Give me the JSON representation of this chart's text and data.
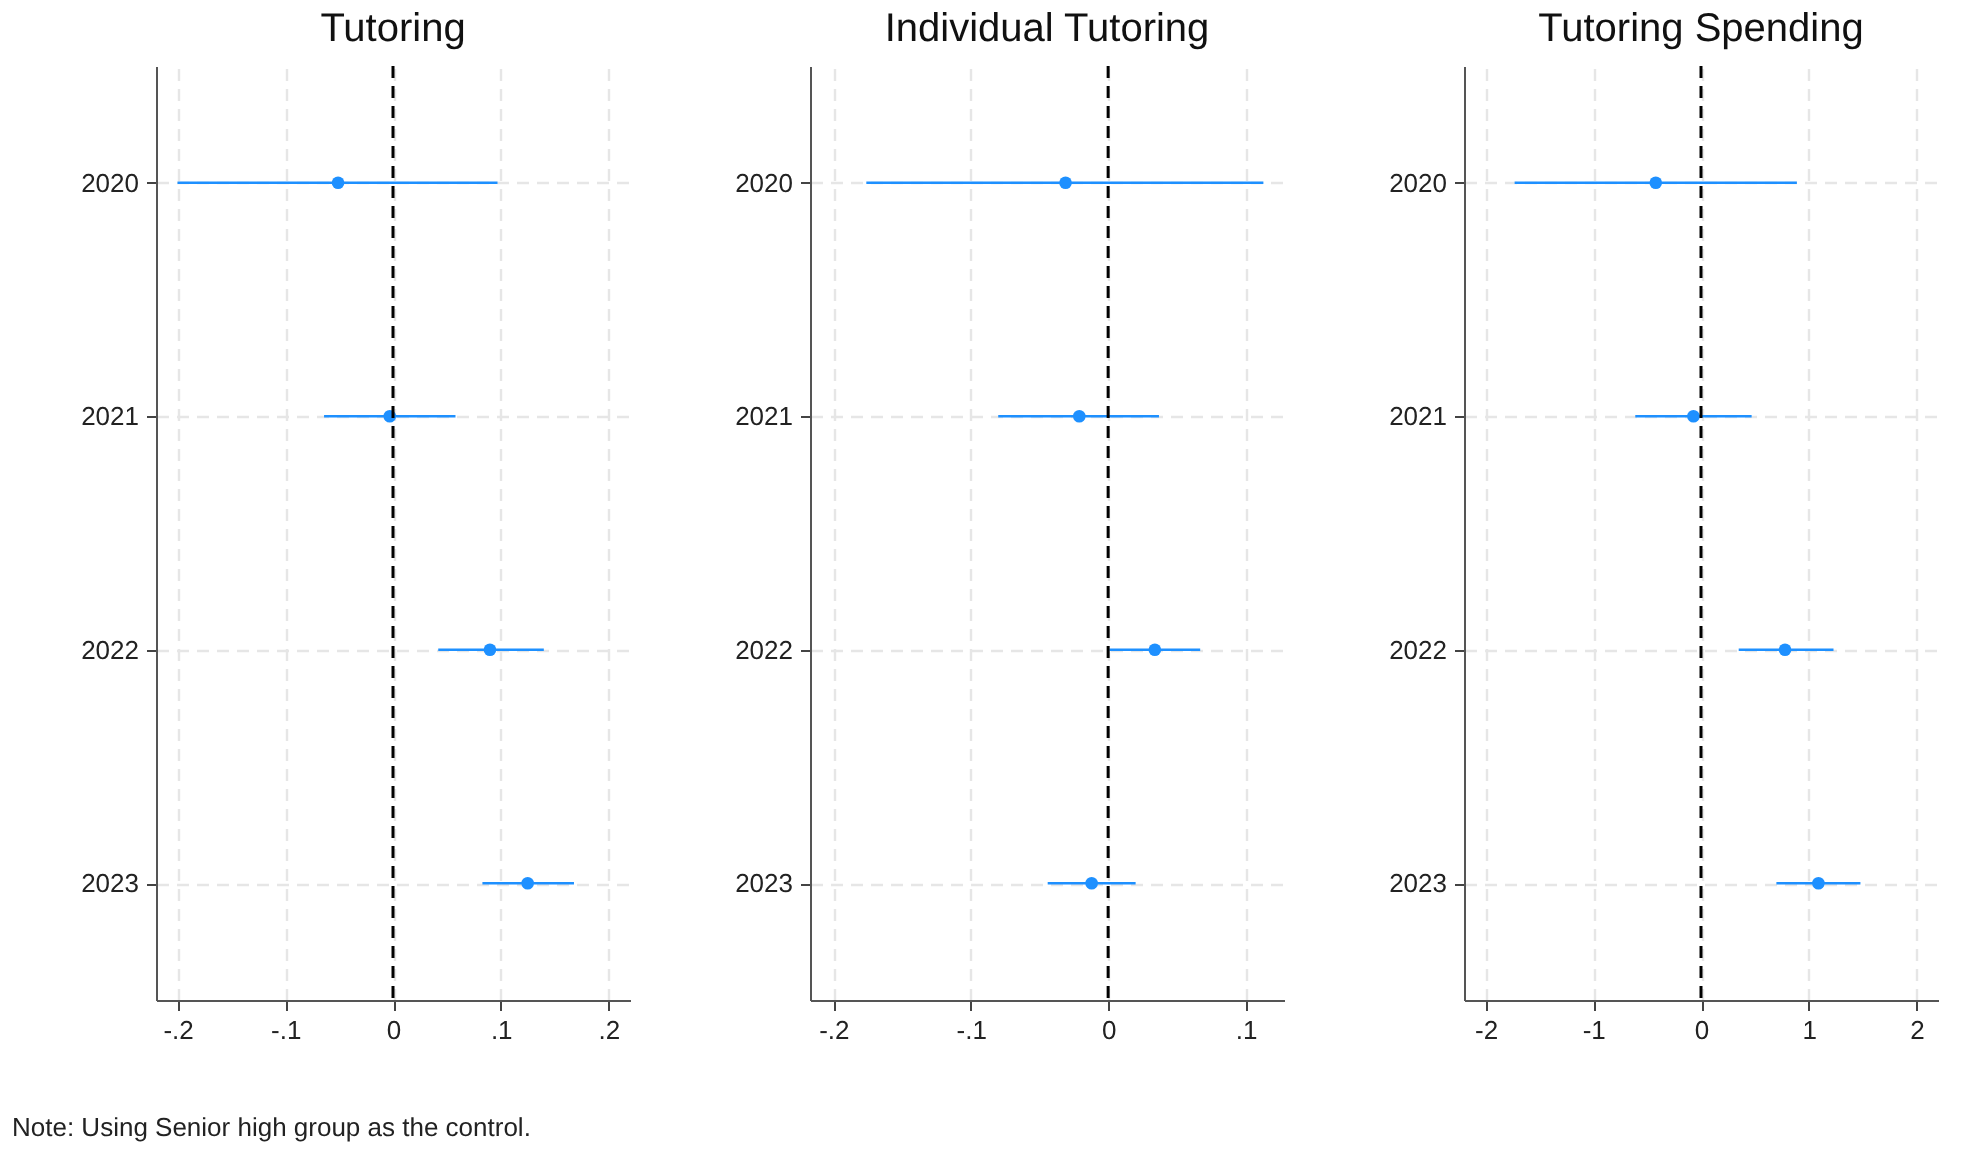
{
  "chart_data": [
    {
      "type": "scatter",
      "title": "Tutoring",
      "orientation": "horizontal",
      "categories": [
        "2020",
        "2021",
        "2022",
        "2023"
      ],
      "series": [
        {
          "color": "#1e90ff",
          "values": [
            -0.051,
            -0.003,
            0.09,
            0.125
          ],
          "errors": [
            [
              -0.2,
              0.097
            ],
            [
              -0.064,
              0.058
            ],
            [
              0.042,
              0.14
            ],
            [
              0.083,
              0.168
            ]
          ]
        }
      ],
      "xlim": [
        -0.22,
        0.22
      ],
      "xticks": [
        {
          "value": -0.2,
          "label": "-.2"
        },
        {
          "value": -0.1,
          "label": "-.1"
        },
        0,
        {
          "value": 0.1,
          "label": ".1"
        },
        {
          "value": 0.2,
          "label": ".2"
        }
      ],
      "ref_lines": [
        {
          "axis": "x",
          "value": 0,
          "color": "#000000",
          "line_style": "dashed"
        }
      ],
      "grid": true,
      "marker": "circle",
      "annotations": [
        "Note: Using Senior high group as the control."
      ]
    },
    {
      "type": "scatter",
      "title": "Individual Tutoring",
      "orientation": "horizontal",
      "categories": [
        "2020",
        "2021",
        "2022",
        "2023"
      ],
      "series": [
        {
          "color": "#1e90ff",
          "values": [
            -0.031,
            -0.021,
            0.034,
            -0.012
          ],
          "errors": [
            [
              -0.176,
              0.113
            ],
            [
              -0.08,
              0.037
            ],
            [
              0.001,
              0.067
            ],
            [
              -0.044,
              0.02
            ]
          ]
        }
      ],
      "xlim": [
        -0.217,
        0.128
      ],
      "xticks": [
        {
          "value": -0.2,
          "label": "-.2"
        },
        {
          "value": -0.1,
          "label": "-.1"
        },
        0,
        {
          "value": 0.1,
          "label": ".1"
        }
      ],
      "ref_lines": [
        {
          "axis": "x",
          "value": 0,
          "color": "#000000",
          "line_style": "dashed"
        }
      ],
      "grid": true,
      "marker": "circle"
    },
    {
      "type": "scatter",
      "title": "Tutoring Spending",
      "orientation": "horizontal",
      "categories": [
        "2020",
        "2021",
        "2022",
        "2023"
      ],
      "series": [
        {
          "color": "#1e90ff",
          "values": [
            -0.42,
            -0.07,
            0.78,
            1.09
          ],
          "errors": [
            [
              -1.73,
              0.89
            ],
            [
              -0.61,
              0.47
            ],
            [
              0.35,
              1.23
            ],
            [
              0.7,
              1.48
            ]
          ]
        }
      ],
      "xlim": [
        -2.2,
        2.2
      ],
      "xticks": [
        -2,
        -1,
        0,
        1,
        2
      ],
      "ref_lines": [
        {
          "axis": "x",
          "value": 0,
          "color": "#000000",
          "line_style": "dashed"
        }
      ],
      "grid": true,
      "marker": "circle"
    }
  ]
}
